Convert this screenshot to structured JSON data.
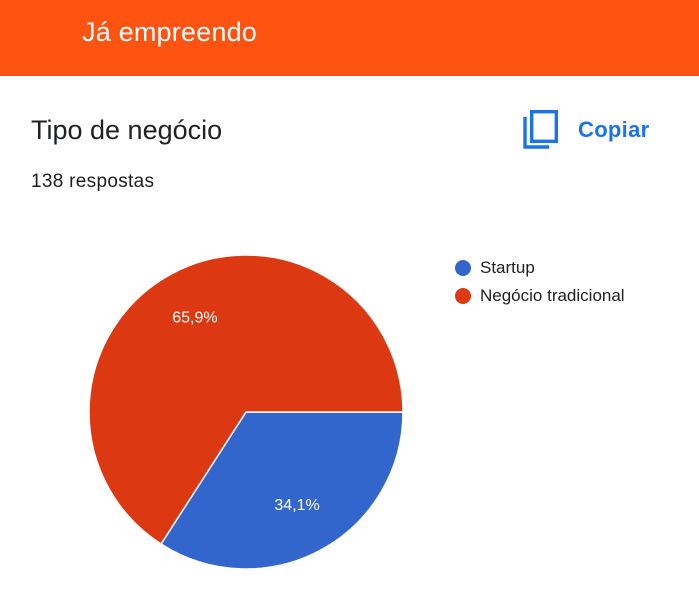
{
  "header": {
    "title": "Já empreendo",
    "color": "#ff5312"
  },
  "card": {
    "title": "Tipo de negócio",
    "responses": "138 respostas",
    "copy_label": "Copiar",
    "copy_icon": "copy-icon"
  },
  "chart_data": {
    "type": "pie",
    "legend_position": "right",
    "slices": [
      {
        "label": "Startup",
        "value": 34.1,
        "display": "34,1%",
        "color": "#3366cc"
      },
      {
        "label": "Negócio tradicional",
        "value": 65.9,
        "display": "65,9%",
        "color": "#dc3912"
      }
    ]
  }
}
